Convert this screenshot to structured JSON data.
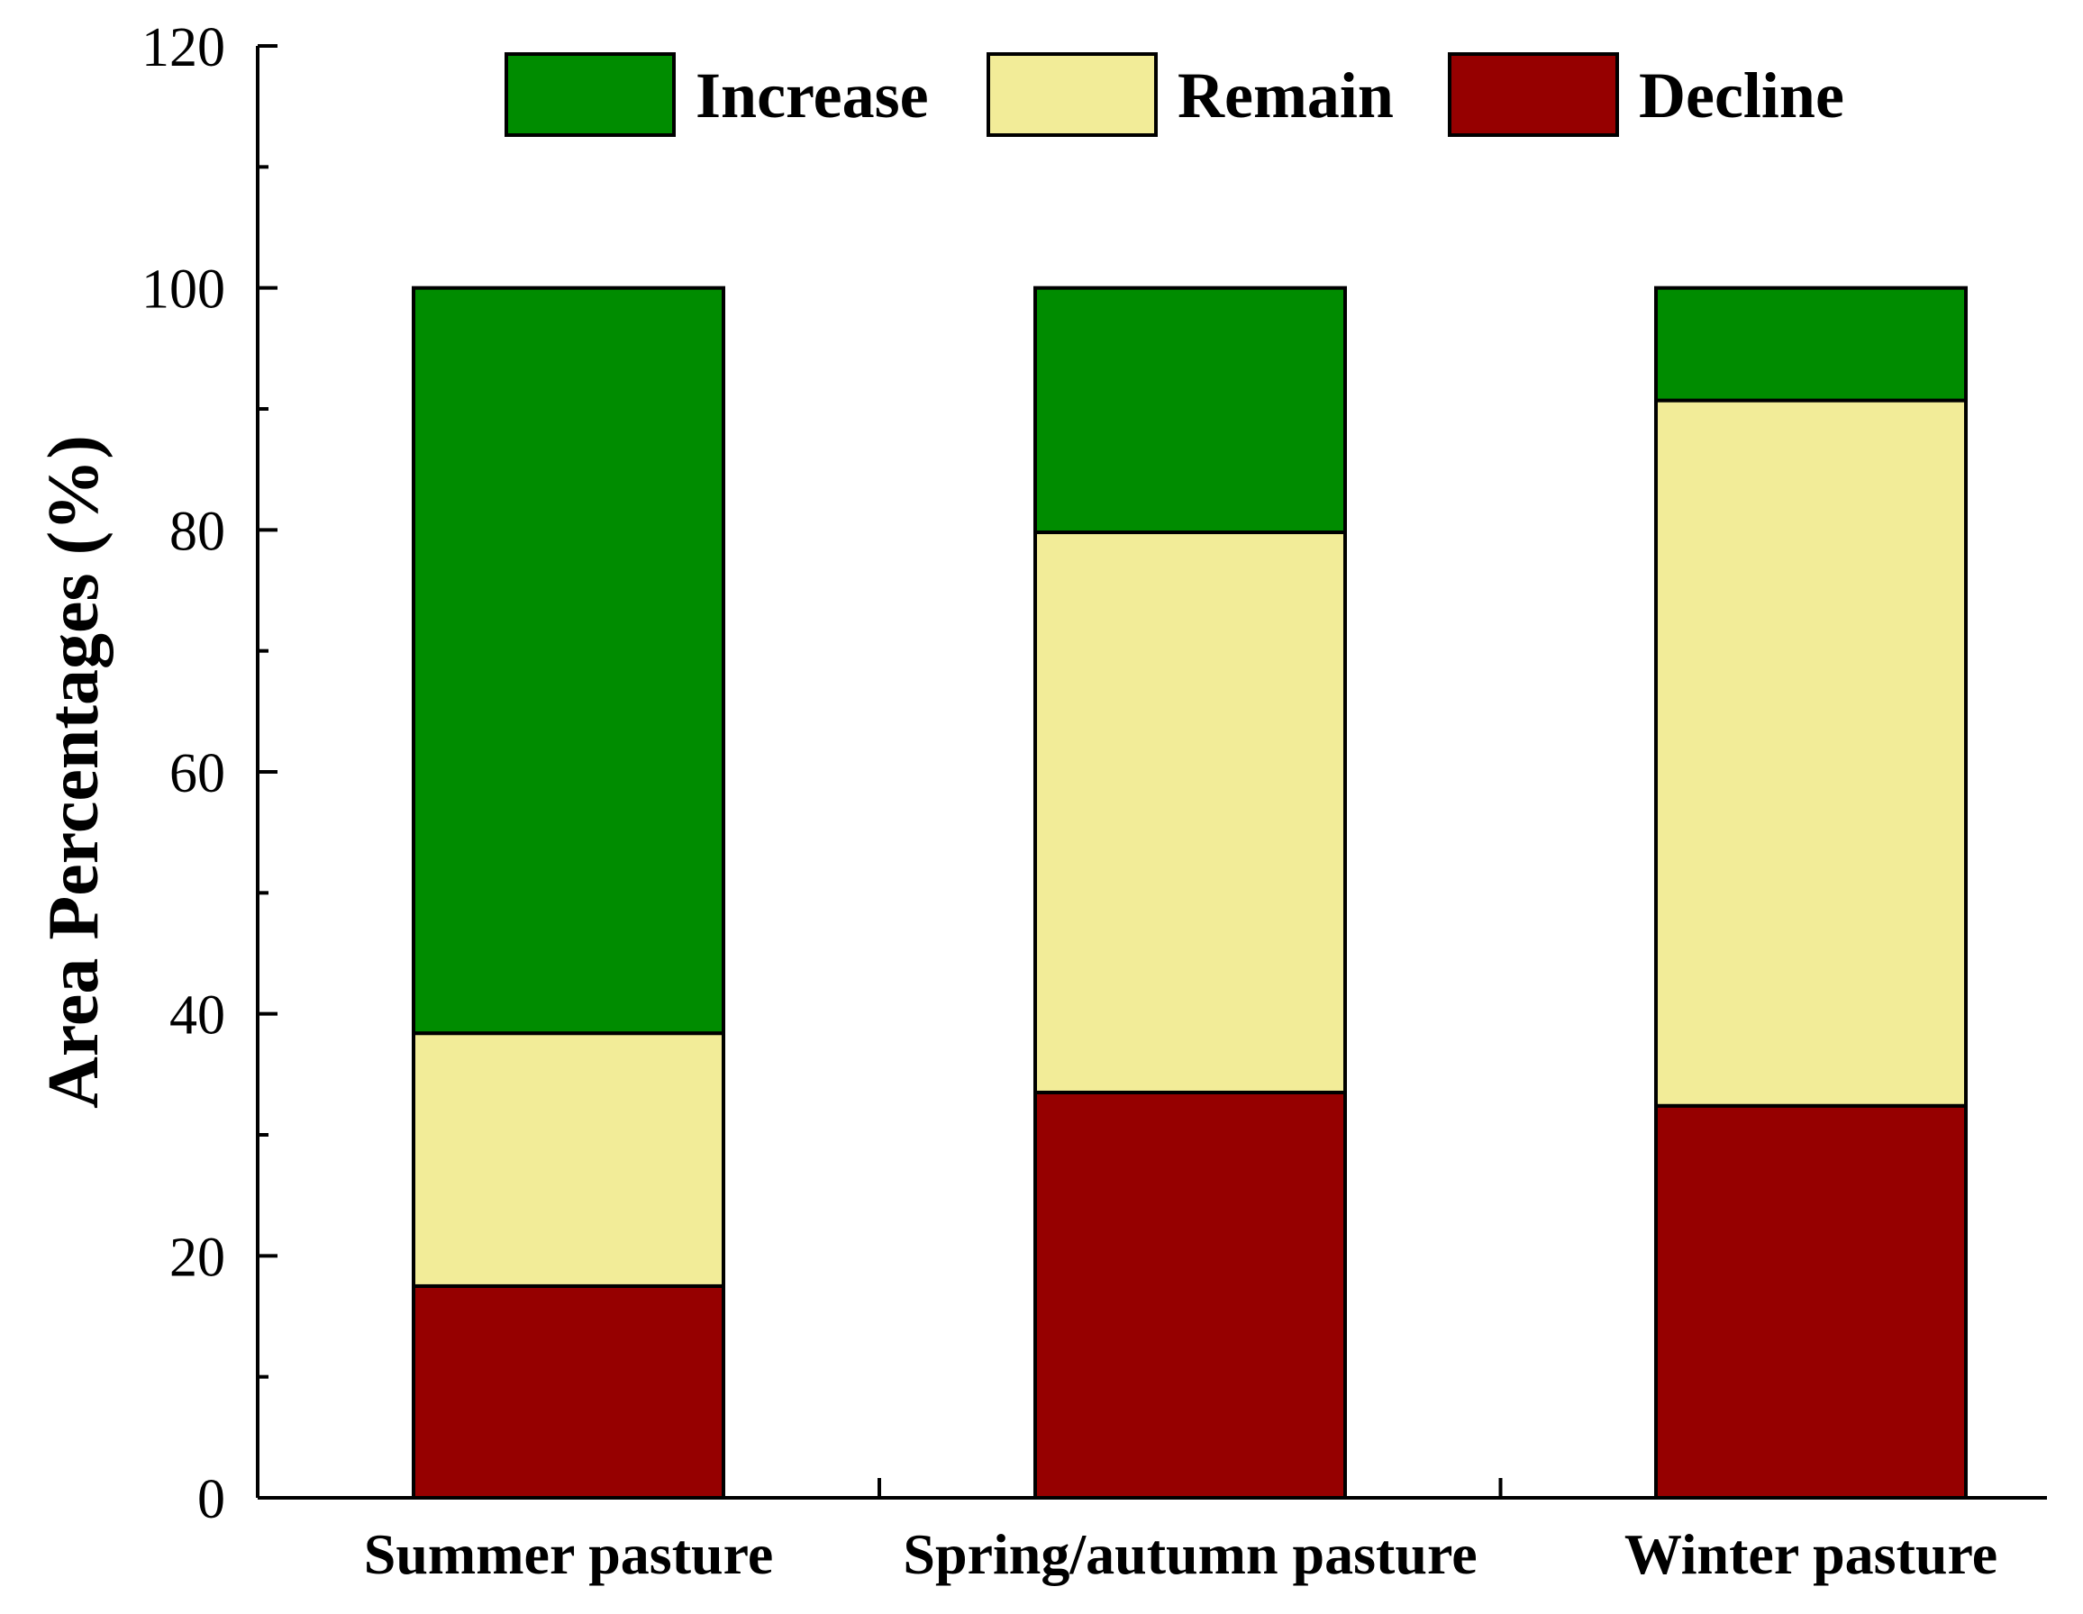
{
  "chart_data": {
    "type": "bar",
    "stacked": true,
    "title": "",
    "xlabel": "",
    "ylabel": "Area Percentages (%)",
    "ylim": [
      0,
      120
    ],
    "yticks": [
      0,
      20,
      40,
      60,
      80,
      100,
      120
    ],
    "categories": [
      "Summer pasture",
      "Spring/autumn pasture",
      "Winter pasture"
    ],
    "series": [
      {
        "name": "Decline",
        "color": "#960000",
        "values": [
          17.5,
          33.5,
          32.4
        ]
      },
      {
        "name": "Remain",
        "color": "#f2ec98",
        "values": [
          20.9,
          46.3,
          58.3
        ]
      },
      {
        "name": "Increase",
        "color": "#008c00",
        "values": [
          61.6,
          20.2,
          9.3
        ]
      }
    ],
    "legend": {
      "position": "top",
      "order": [
        "Increase",
        "Remain",
        "Decline"
      ]
    },
    "grid": false
  }
}
